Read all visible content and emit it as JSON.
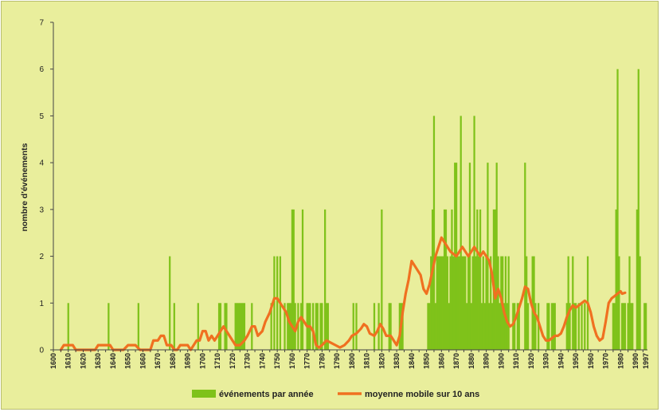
{
  "chart_data": {
    "type": "bar",
    "title": "",
    "xlabel": "",
    "ylabel": "nombre d'événements",
    "ylim": [
      0,
      7
    ],
    "yticks": [
      0,
      1,
      2,
      3,
      4,
      5,
      6,
      7
    ],
    "xlim": [
      1600,
      1998
    ],
    "xticks": [
      "1600",
      "1610",
      "1620",
      "1630",
      "1640",
      "1650",
      "1660",
      "1670",
      "1680",
      "1690",
      "1700",
      "1710",
      "1720",
      "1730",
      "1740",
      "1750",
      "1760",
      "1770",
      "1780",
      "1790",
      "1800",
      "1810",
      "1820",
      "1830",
      "1840",
      "1850",
      "1860",
      "1870",
      "1880",
      "1890",
      "1900",
      "1910",
      "1920",
      "1930",
      "1940",
      "1950",
      "1960",
      "1970",
      "1980",
      "1990",
      "1997"
    ],
    "grid": false,
    "legend_position": "bottom",
    "colors": {
      "bars": "#7fc21a",
      "line": "#f07020",
      "background": "#e9ee9c"
    },
    "series": [
      {
        "name": "événements par année",
        "type": "bar",
        "points": [
          [
            1610,
            1
          ],
          [
            1637,
            1
          ],
          [
            1657,
            1
          ],
          [
            1678,
            2
          ],
          [
            1681,
            1
          ],
          [
            1697,
            1
          ],
          [
            1711,
            1
          ],
          [
            1712,
            1
          ],
          [
            1715,
            1
          ],
          [
            1716,
            1
          ],
          [
            1722,
            1
          ],
          [
            1723,
            1
          ],
          [
            1724,
            1
          ],
          [
            1725,
            1
          ],
          [
            1726,
            1
          ],
          [
            1727,
            1
          ],
          [
            1728,
            1
          ],
          [
            1733,
            1
          ],
          [
            1746,
            1
          ],
          [
            1748,
            2
          ],
          [
            1750,
            2
          ],
          [
            1752,
            2
          ],
          [
            1755,
            1
          ],
          [
            1757,
            1
          ],
          [
            1758,
            1
          ],
          [
            1759,
            1
          ],
          [
            1760,
            3
          ],
          [
            1761,
            3
          ],
          [
            1762,
            1
          ],
          [
            1764,
            1
          ],
          [
            1766,
            1
          ],
          [
            1767,
            3
          ],
          [
            1770,
            1
          ],
          [
            1771,
            1
          ],
          [
            1772,
            1
          ],
          [
            1774,
            1
          ],
          [
            1776,
            1
          ],
          [
            1777,
            1
          ],
          [
            1779,
            1
          ],
          [
            1780,
            1
          ],
          [
            1782,
            3
          ],
          [
            1783,
            1
          ],
          [
            1784,
            1
          ],
          [
            1801,
            1
          ],
          [
            1803,
            1
          ],
          [
            1815,
            1
          ],
          [
            1818,
            1
          ],
          [
            1820,
            3
          ],
          [
            1825,
            1
          ],
          [
            1826,
            1
          ],
          [
            1832,
            1
          ],
          [
            1833,
            1
          ],
          [
            1834,
            1
          ],
          [
            1851,
            1
          ],
          [
            1852,
            1
          ],
          [
            1853,
            2
          ],
          [
            1854,
            3
          ],
          [
            1855,
            5
          ],
          [
            1856,
            1
          ],
          [
            1857,
            2
          ],
          [
            1858,
            2
          ],
          [
            1859,
            2
          ],
          [
            1860,
            2
          ],
          [
            1861,
            2
          ],
          [
            1862,
            3
          ],
          [
            1863,
            3
          ],
          [
            1864,
            2
          ],
          [
            1865,
            1
          ],
          [
            1866,
            2
          ],
          [
            1867,
            3
          ],
          [
            1868,
            2
          ],
          [
            1869,
            4
          ],
          [
            1870,
            4
          ],
          [
            1871,
            2
          ],
          [
            1872,
            2
          ],
          [
            1873,
            5
          ],
          [
            1874,
            2
          ],
          [
            1875,
            2
          ],
          [
            1876,
            2
          ],
          [
            1877,
            1
          ],
          [
            1878,
            2
          ],
          [
            1879,
            4
          ],
          [
            1880,
            1
          ],
          [
            1881,
            2
          ],
          [
            1882,
            5
          ],
          [
            1883,
            2
          ],
          [
            1884,
            3
          ],
          [
            1885,
            2
          ],
          [
            1886,
            3
          ],
          [
            1887,
            1
          ],
          [
            1888,
            2
          ],
          [
            1889,
            1
          ],
          [
            1890,
            2
          ],
          [
            1891,
            4
          ],
          [
            1892,
            1
          ],
          [
            1893,
            2
          ],
          [
            1894,
            1
          ],
          [
            1895,
            3
          ],
          [
            1896,
            3
          ],
          [
            1897,
            4
          ],
          [
            1898,
            2
          ],
          [
            1899,
            1
          ],
          [
            1900,
            2
          ],
          [
            1901,
            2
          ],
          [
            1902,
            1
          ],
          [
            1903,
            2
          ],
          [
            1904,
            1
          ],
          [
            1905,
            2
          ],
          [
            1908,
            1
          ],
          [
            1909,
            1
          ],
          [
            1911,
            1
          ],
          [
            1912,
            1
          ],
          [
            1916,
            4
          ],
          [
            1917,
            2
          ],
          [
            1918,
            1
          ],
          [
            1921,
            2
          ],
          [
            1922,
            2
          ],
          [
            1923,
            1
          ],
          [
            1925,
            1
          ],
          [
            1931,
            1
          ],
          [
            1932,
            1
          ],
          [
            1934,
            1
          ],
          [
            1935,
            1
          ],
          [
            1936,
            1
          ],
          [
            1944,
            1
          ],
          [
            1945,
            2
          ],
          [
            1946,
            1
          ],
          [
            1948,
            2
          ],
          [
            1949,
            1
          ],
          [
            1950,
            1
          ],
          [
            1952,
            1
          ],
          [
            1954,
            1
          ],
          [
            1956,
            1
          ],
          [
            1958,
            2
          ],
          [
            1975,
            1
          ],
          [
            1976,
            1
          ],
          [
            1977,
            3
          ],
          [
            1978,
            6
          ],
          [
            1979,
            2
          ],
          [
            1981,
            1
          ],
          [
            1982,
            1
          ],
          [
            1983,
            1
          ],
          [
            1985,
            1
          ],
          [
            1986,
            2
          ],
          [
            1987,
            1
          ],
          [
            1988,
            1
          ],
          [
            1991,
            3
          ],
          [
            1992,
            6
          ],
          [
            1993,
            2
          ],
          [
            1996,
            1
          ],
          [
            1997,
            1
          ]
        ]
      },
      {
        "name": "moyenne mobile sur 10 ans",
        "type": "line",
        "points": [
          [
            1605,
            0
          ],
          [
            1607,
            0.1
          ],
          [
            1610,
            0.1
          ],
          [
            1613,
            0.1
          ],
          [
            1615,
            0
          ],
          [
            1620,
            0
          ],
          [
            1625,
            0
          ],
          [
            1628,
            0
          ],
          [
            1630,
            0.1
          ],
          [
            1635,
            0.1
          ],
          [
            1638,
            0.1
          ],
          [
            1640,
            0
          ],
          [
            1645,
            0
          ],
          [
            1647,
            0
          ],
          [
            1650,
            0.1
          ],
          [
            1655,
            0.1
          ],
          [
            1658,
            0
          ],
          [
            1662,
            0
          ],
          [
            1665,
            0
          ],
          [
            1667,
            0.2
          ],
          [
            1670,
            0.2
          ],
          [
            1672,
            0.3
          ],
          [
            1674,
            0.3
          ],
          [
            1676,
            0.1
          ],
          [
            1679,
            0.1
          ],
          [
            1681,
            0
          ],
          [
            1683,
            0
          ],
          [
            1685,
            0.1
          ],
          [
            1688,
            0.1
          ],
          [
            1690,
            0.1
          ],
          [
            1692,
            0
          ],
          [
            1694,
            0.1
          ],
          [
            1696,
            0.2
          ],
          [
            1698,
            0.2
          ],
          [
            1700,
            0.4
          ],
          [
            1702,
            0.4
          ],
          [
            1704,
            0.2
          ],
          [
            1706,
            0.3
          ],
          [
            1708,
            0.2
          ],
          [
            1710,
            0.3
          ],
          [
            1712,
            0.4
          ],
          [
            1714,
            0.5
          ],
          [
            1716,
            0.4
          ],
          [
            1718,
            0.3
          ],
          [
            1720,
            0.2
          ],
          [
            1722,
            0.1
          ],
          [
            1725,
            0.1
          ],
          [
            1728,
            0.2
          ],
          [
            1730,
            0.3
          ],
          [
            1733,
            0.5
          ],
          [
            1735,
            0.5
          ],
          [
            1737,
            0.3
          ],
          [
            1740,
            0.4
          ],
          [
            1742,
            0.6
          ],
          [
            1745,
            0.8
          ],
          [
            1747,
            1
          ],
          [
            1748,
            1.1
          ],
          [
            1750,
            1.1
          ],
          [
            1752,
            1
          ],
          [
            1754,
            0.9
          ],
          [
            1756,
            0.8
          ],
          [
            1758,
            0.6
          ],
          [
            1760,
            0.5
          ],
          [
            1762,
            0.4
          ],
          [
            1764,
            0.6
          ],
          [
            1766,
            0.7
          ],
          [
            1768,
            0.6
          ],
          [
            1770,
            0.5
          ],
          [
            1772,
            0.5
          ],
          [
            1774,
            0.4
          ],
          [
            1776,
            0.1
          ],
          [
            1778,
            0.05
          ],
          [
            1780,
            0.1
          ],
          [
            1783,
            0.2
          ],
          [
            1786,
            0.15
          ],
          [
            1789,
            0.1
          ],
          [
            1792,
            0.05
          ],
          [
            1795,
            0.1
          ],
          [
            1798,
            0.2
          ],
          [
            1800,
            0.3
          ],
          [
            1803,
            0.35
          ],
          [
            1806,
            0.45
          ],
          [
            1808,
            0.55
          ],
          [
            1810,
            0.5
          ],
          [
            1812,
            0.35
          ],
          [
            1815,
            0.3
          ],
          [
            1817,
            0.4
          ],
          [
            1819,
            0.55
          ],
          [
            1821,
            0.45
          ],
          [
            1823,
            0.3
          ],
          [
            1826,
            0.3
          ],
          [
            1828,
            0.2
          ],
          [
            1830,
            0.1
          ],
          [
            1832,
            0.3
          ],
          [
            1834,
            0.8
          ],
          [
            1836,
            1.2
          ],
          [
            1838,
            1.5
          ],
          [
            1840,
            1.9
          ],
          [
            1842,
            1.8
          ],
          [
            1844,
            1.7
          ],
          [
            1846,
            1.6
          ],
          [
            1848,
            1.3
          ],
          [
            1850,
            1.2
          ],
          [
            1852,
            1.4
          ],
          [
            1854,
            1.7
          ],
          [
            1856,
            2
          ],
          [
            1858,
            2.2
          ],
          [
            1860,
            2.4
          ],
          [
            1862,
            2.3
          ],
          [
            1864,
            2.2
          ],
          [
            1866,
            2.1
          ],
          [
            1868,
            2.05
          ],
          [
            1870,
            2
          ],
          [
            1872,
            2.1
          ],
          [
            1874,
            2.2
          ],
          [
            1876,
            2.1
          ],
          [
            1878,
            2
          ],
          [
            1880,
            2.1
          ],
          [
            1882,
            2.2
          ],
          [
            1884,
            2.1
          ],
          [
            1886,
            2
          ],
          [
            1888,
            2.1
          ],
          [
            1890,
            2
          ],
          [
            1892,
            1.9
          ],
          [
            1894,
            1.6
          ],
          [
            1896,
            1.1
          ],
          [
            1898,
            1.3
          ],
          [
            1900,
            1.1
          ],
          [
            1902,
            0.8
          ],
          [
            1904,
            0.6
          ],
          [
            1906,
            0.5
          ],
          [
            1908,
            0.55
          ],
          [
            1910,
            0.7
          ],
          [
            1912,
            0.9
          ],
          [
            1914,
            1.1
          ],
          [
            1916,
            1.35
          ],
          [
            1918,
            1.3
          ],
          [
            1920,
            1
          ],
          [
            1922,
            0.8
          ],
          [
            1924,
            0.7
          ],
          [
            1926,
            0.5
          ],
          [
            1928,
            0.3
          ],
          [
            1930,
            0.2
          ],
          [
            1932,
            0.2
          ],
          [
            1934,
            0.25
          ],
          [
            1936,
            0.3
          ],
          [
            1938,
            0.3
          ],
          [
            1940,
            0.35
          ],
          [
            1942,
            0.5
          ],
          [
            1944,
            0.7
          ],
          [
            1946,
            0.85
          ],
          [
            1948,
            0.95
          ],
          [
            1950,
            0.9
          ],
          [
            1952,
            0.95
          ],
          [
            1954,
            1
          ],
          [
            1956,
            1.05
          ],
          [
            1958,
            1
          ],
          [
            1960,
            0.8
          ],
          [
            1962,
            0.5
          ],
          [
            1964,
            0.3
          ],
          [
            1966,
            0.2
          ],
          [
            1968,
            0.25
          ],
          [
            1970,
            0.6
          ],
          [
            1972,
            1
          ],
          [
            1974,
            1.1
          ],
          [
            1976,
            1.15
          ],
          [
            1978,
            1.2
          ],
          [
            1980,
            1.25
          ],
          [
            1981,
            1.2
          ],
          [
            1983,
            1.22
          ]
        ]
      }
    ]
  }
}
